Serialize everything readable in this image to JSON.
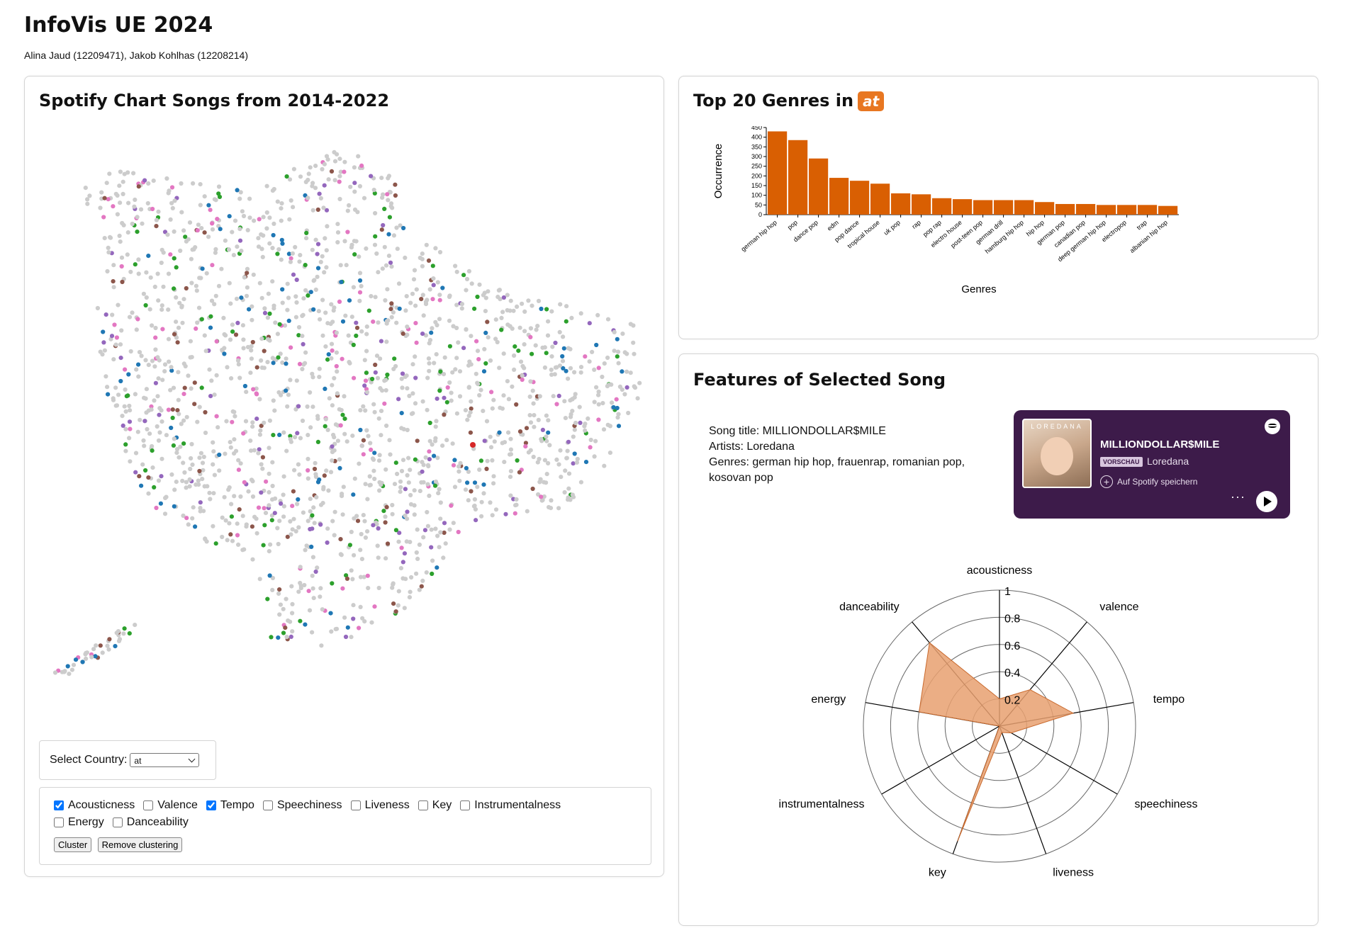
{
  "header": {
    "title": "InfoVis UE 2024",
    "authors": "Alina Jaud (12209471), Jakob Kohlhas (12208214)"
  },
  "scatter_panel": {
    "title": "Spotify Chart Songs from 2014-2022",
    "country_label": "Select Country:",
    "country_value": "at",
    "checkboxes": [
      {
        "label": "Acousticness",
        "checked": true
      },
      {
        "label": "Valence",
        "checked": false
      },
      {
        "label": "Tempo",
        "checked": true
      },
      {
        "label": "Speechiness",
        "checked": false
      },
      {
        "label": "Liveness",
        "checked": false
      },
      {
        "label": "Key",
        "checked": false
      },
      {
        "label": "Instrumentalness",
        "checked": false
      },
      {
        "label": "Energy",
        "checked": false
      },
      {
        "label": "Danceability",
        "checked": false
      }
    ],
    "cluster_button": "Cluster",
    "remove_button": "Remove clustering",
    "colors": {
      "base": "#cccccc",
      "purple": "#9467bd",
      "blue": "#1f77b4",
      "green": "#2ca02c",
      "pink": "#e377c2",
      "brown": "#8c564b"
    }
  },
  "genre_panel": {
    "title": "Top 20 Genres in",
    "country_badge": "at",
    "bar_color": "#d95f02"
  },
  "chart_data": {
    "type": "bar",
    "title": "Top 20 Genres in at",
    "xlabel": "Genres",
    "ylabel": "Occurrence",
    "ylim": [
      0,
      450
    ],
    "yticks": [
      0,
      50,
      100,
      150,
      200,
      250,
      300,
      350,
      400,
      450
    ],
    "categories": [
      "german hip hop",
      "pop",
      "dance pop",
      "edm",
      "pop dance",
      "tropical house",
      "uk pop",
      "rap",
      "pop rap",
      "electro house",
      "post-teen pop",
      "german drill",
      "hamburg hip hop",
      "hip hop",
      "german pop",
      "canadian pop",
      "deep german hip hop",
      "electropop",
      "trap",
      "albanian hip hop"
    ],
    "values": [
      430,
      385,
      290,
      190,
      175,
      160,
      110,
      105,
      85,
      80,
      75,
      75,
      75,
      65,
      55,
      55,
      50,
      50,
      50,
      45
    ]
  },
  "features_panel": {
    "title": "Features of Selected Song",
    "song_title_line": "Song title: MILLIONDOLLAR$MILE",
    "artists_line": "Artists: Loredana",
    "genres_line": "Genres: german hip hop, frauenrap, romanian pop, kosovan pop",
    "spotify": {
      "cover_brand": "LOREDANA",
      "track": "MILLIONDOLLAR$MILE",
      "preview": "VORSCHAU",
      "artist": "Loredana",
      "save": "Auf Spotify speichern",
      "more": "···"
    },
    "radar": {
      "axes": [
        "acousticness",
        "valence",
        "tempo",
        "speechiness",
        "liveness",
        "key",
        "instrumentalness",
        "energy",
        "danceability"
      ],
      "values": [
        0.2,
        0.35,
        0.55,
        0.1,
        0.05,
        0.9,
        0.0,
        0.6,
        0.8
      ],
      "rings": [
        0.2,
        0.4,
        0.6,
        0.8,
        1
      ],
      "ring_labels": [
        "0.2",
        "0.4",
        "0.6",
        "0.8",
        "1"
      ],
      "fill": "#e8a070",
      "stroke": "#c96a2e"
    }
  }
}
